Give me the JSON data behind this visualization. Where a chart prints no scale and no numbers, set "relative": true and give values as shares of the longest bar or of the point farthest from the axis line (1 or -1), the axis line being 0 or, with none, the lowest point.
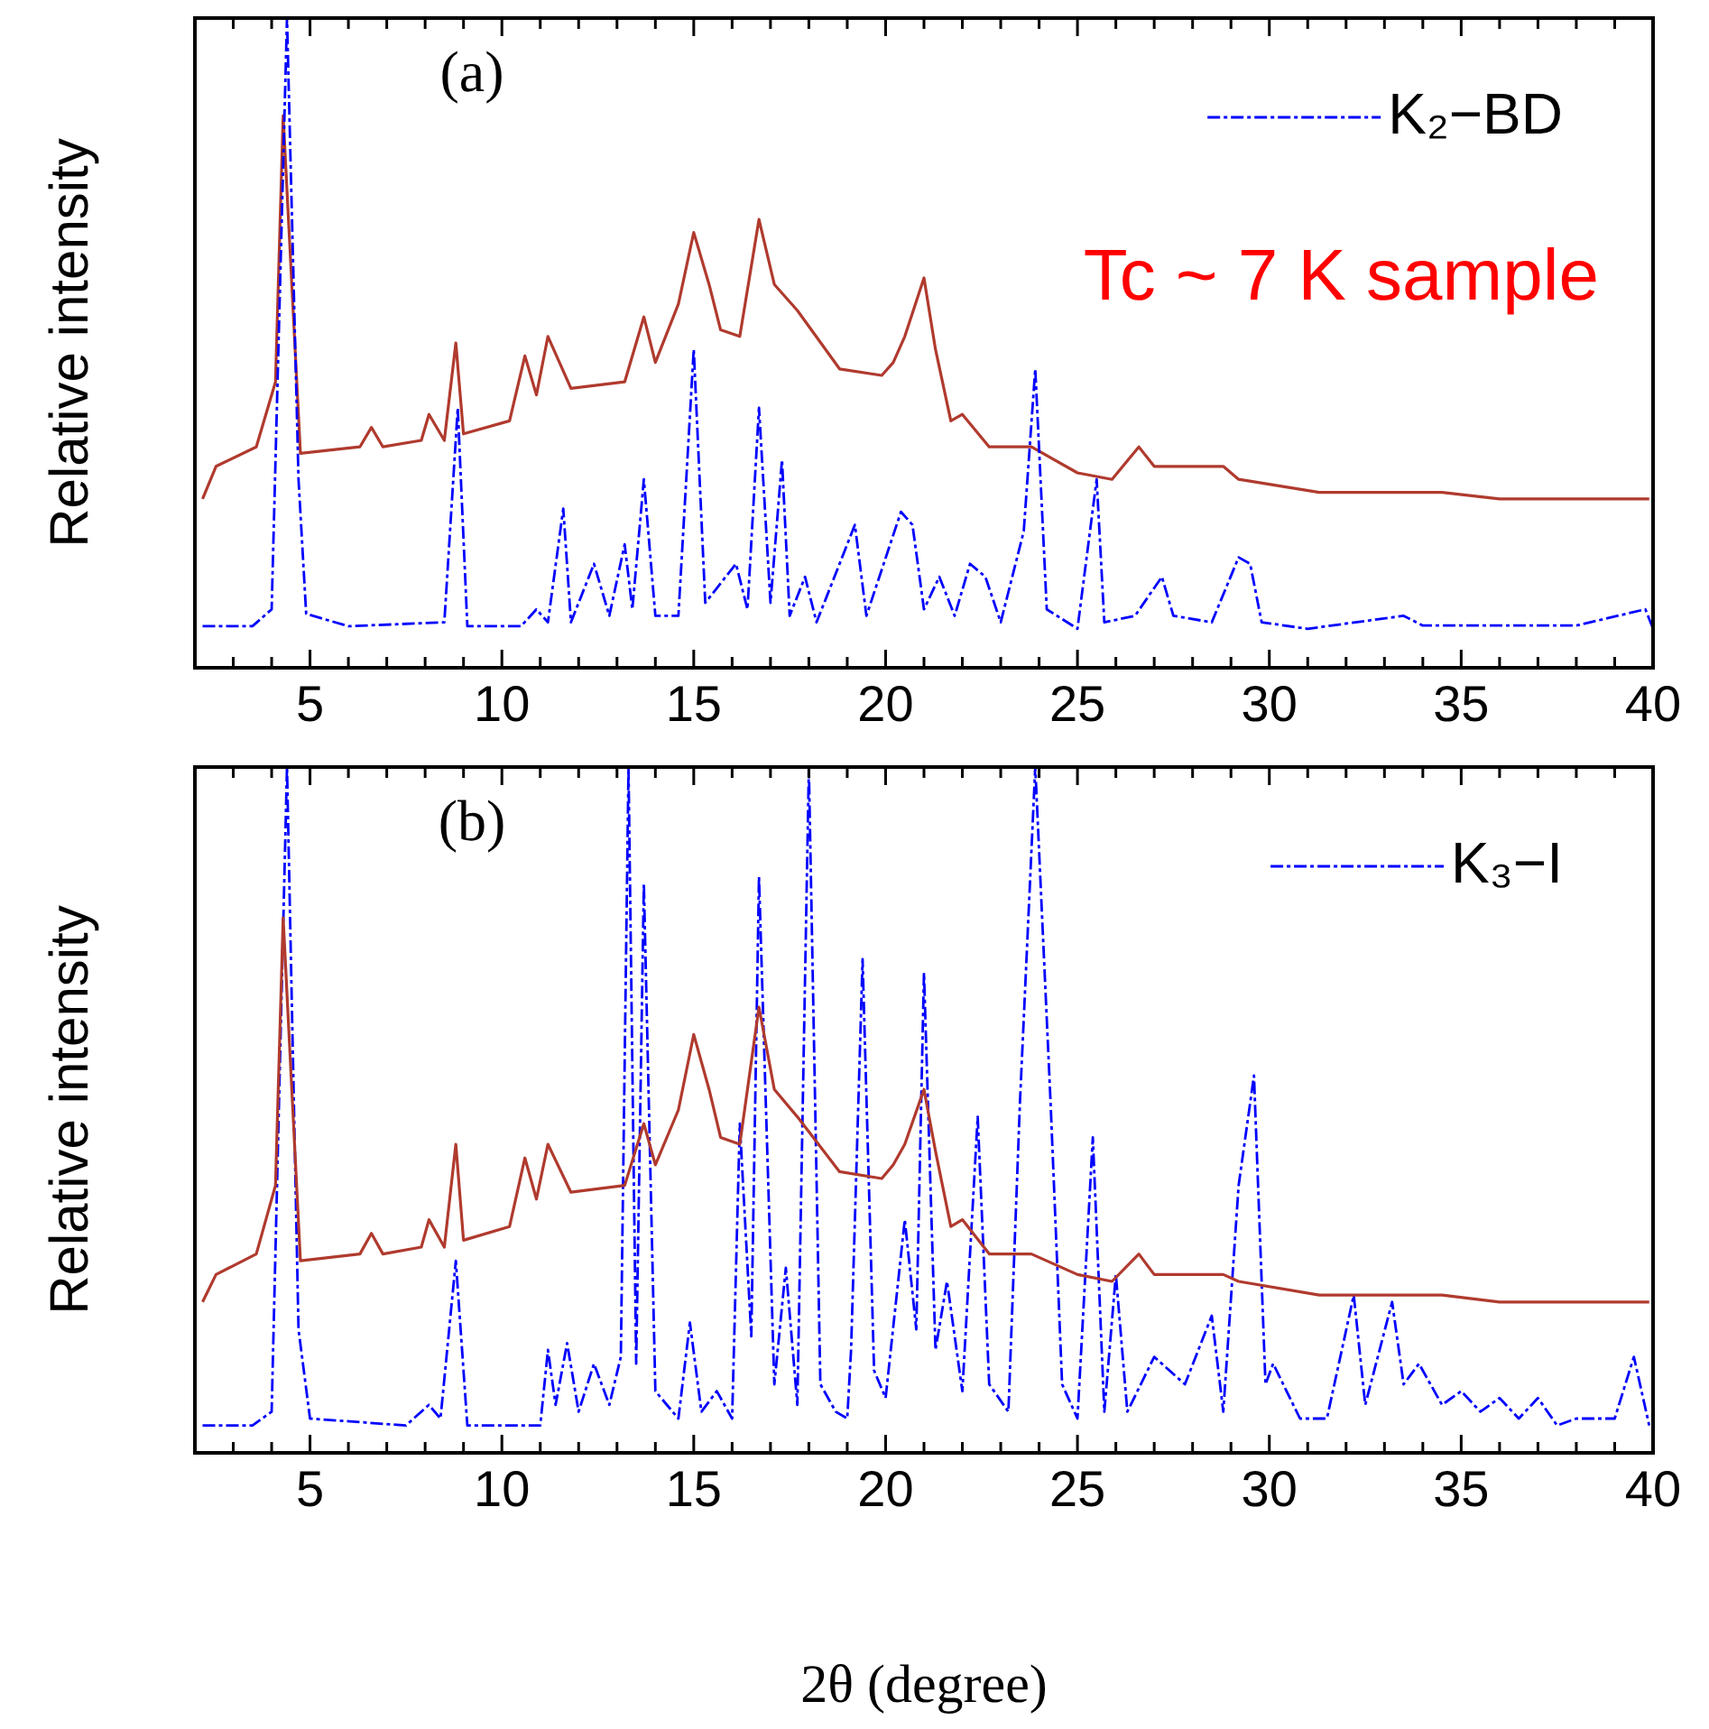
{
  "chart_data": [
    {
      "type": "line",
      "title": "(a)",
      "ylabel": "Relative intensity",
      "relative": true,
      "legend": "top right",
      "annotations": [
        "Tc ~ 7 K sample"
      ],
      "xlim": [
        2,
        40
      ],
      "xticks": [
        {
          "value": 3,
          "label": null
        },
        {
          "value": 4,
          "label": null
        },
        5,
        {
          "value": 6,
          "label": null
        },
        {
          "value": 7,
          "label": null
        },
        {
          "value": 8,
          "label": null
        },
        {
          "value": 9,
          "label": null
        },
        10,
        {
          "value": 11,
          "label": null
        },
        {
          "value": 12,
          "label": null
        },
        {
          "value": 13,
          "label": null
        },
        {
          "value": 14,
          "label": null
        },
        15,
        {
          "value": 16,
          "label": null
        },
        {
          "value": 17,
          "label": null
        },
        {
          "value": 18,
          "label": null
        },
        {
          "value": 19,
          "label": null
        },
        20,
        {
          "value": 21,
          "label": null
        },
        {
          "value": 22,
          "label": null
        },
        {
          "value": 23,
          "label": null
        },
        {
          "value": 24,
          "label": null
        },
        25,
        {
          "value": 26,
          "label": null
        },
        {
          "value": 27,
          "label": null
        },
        {
          "value": 28,
          "label": null
        },
        {
          "value": 29,
          "label": null
        },
        30,
        {
          "value": 31,
          "label": null
        },
        {
          "value": 32,
          "label": null
        },
        {
          "value": 33,
          "label": null
        },
        {
          "value": 34,
          "label": null
        },
        35,
        {
          "value": 36,
          "label": null
        },
        {
          "value": 37,
          "label": null
        },
        {
          "value": 38,
          "label": null
        },
        {
          "value": 39,
          "label": null
        },
        40
      ],
      "series": [
        {
          "color": "#0000ff",
          "line_style": "dashed",
          "name": "K₂−BD",
          "x": [
            2.2,
            3.5,
            4.0,
            4.4,
            4.7,
            4.9,
            6,
            8.5,
            8.85,
            9.1,
            10.5,
            10.9,
            11.2,
            11.6,
            11.8,
            12.4,
            12.8,
            13.2,
            13.4,
            13.7,
            14.0,
            14.6,
            15.0,
            15.3,
            16.1,
            16.4,
            16.7,
            17.0,
            17.3,
            17.5,
            17.9,
            18.2,
            19.2,
            19.5,
            20.4,
            20.7,
            21.0,
            21.4,
            21.8,
            22.2,
            22.6,
            23.0,
            23.6,
            23.9,
            24.2,
            25.0,
            25.5,
            25.7,
            26.5,
            27.2,
            27.5,
            28.5,
            29.2,
            29.5,
            29.8,
            31,
            33.5,
            34,
            36,
            38,
            39.8,
            40
          ],
          "values": [
            0.064,
            0.064,
            0.09,
            1.0,
            0.29,
            0.083,
            0.064,
            0.07,
            0.4,
            0.064,
            0.064,
            0.09,
            0.07,
            0.245,
            0.07,
            0.16,
            0.08,
            0.19,
            0.09,
            0.29,
            0.08,
            0.08,
            0.49,
            0.1,
            0.16,
            0.09,
            0.4,
            0.1,
            0.32,
            0.08,
            0.14,
            0.07,
            0.22,
            0.08,
            0.24,
            0.22,
            0.09,
            0.14,
            0.08,
            0.16,
            0.14,
            0.07,
            0.21,
            0.46,
            0.09,
            0.06,
            0.29,
            0.07,
            0.08,
            0.14,
            0.08,
            0.07,
            0.17,
            0.16,
            0.07,
            0.06,
            0.08,
            0.065,
            0.065,
            0.065,
            0.09,
            0.06
          ]
        },
        {
          "color": "#b03a2e",
          "line_style": "solid",
          "x": [
            2.2,
            2.55,
            3.6,
            4.1,
            4.3,
            4.75,
            6.3,
            6.6,
            6.9,
            7.9,
            8.1,
            8.5,
            8.8,
            9.0,
            10.2,
            10.6,
            10.9,
            11.2,
            11.8,
            13.2,
            13.7,
            14.0,
            14.6,
            15.0,
            15.4,
            15.7,
            16.2,
            16.7,
            17.1,
            17.7,
            18.8,
            19.9,
            20.2,
            20.5,
            21.0,
            21.3,
            21.7,
            22.0,
            22.7,
            23.8,
            25.0,
            25.9,
            26.6,
            27.0,
            28.8,
            29.2,
            31.3,
            34.5,
            36.0,
            39.9
          ],
          "values": [
            0.26,
            0.31,
            0.34,
            0.44,
            0.85,
            0.33,
            0.34,
            0.37,
            0.34,
            0.35,
            0.39,
            0.35,
            0.5,
            0.36,
            0.38,
            0.48,
            0.42,
            0.51,
            0.43,
            0.44,
            0.54,
            0.47,
            0.56,
            0.67,
            0.59,
            0.52,
            0.51,
            0.69,
            0.59,
            0.55,
            0.46,
            0.45,
            0.47,
            0.51,
            0.6,
            0.49,
            0.38,
            0.39,
            0.34,
            0.34,
            0.3,
            0.29,
            0.34,
            0.31,
            0.31,
            0.29,
            0.27,
            0.27,
            0.26,
            0.26
          ]
        }
      ]
    },
    {
      "type": "line",
      "title": "(b)",
      "xlabel": "2θ (degree)",
      "ylabel": "Relative intensity",
      "relative": true,
      "legend": "top right",
      "xlim": [
        2,
        40
      ],
      "xticks": [
        {
          "value": 3,
          "label": null
        },
        {
          "value": 4,
          "label": null
        },
        5,
        {
          "value": 6,
          "label": null
        },
        {
          "value": 7,
          "label": null
        },
        {
          "value": 8,
          "label": null
        },
        {
          "value": 9,
          "label": null
        },
        10,
        {
          "value": 11,
          "label": null
        },
        {
          "value": 12,
          "label": null
        },
        {
          "value": 13,
          "label": null
        },
        {
          "value": 14,
          "label": null
        },
        15,
        {
          "value": 16,
          "label": null
        },
        {
          "value": 17,
          "label": null
        },
        {
          "value": 18,
          "label": null
        },
        {
          "value": 19,
          "label": null
        },
        20,
        {
          "value": 21,
          "label": null
        },
        {
          "value": 22,
          "label": null
        },
        {
          "value": 23,
          "label": null
        },
        {
          "value": 24,
          "label": null
        },
        25,
        {
          "value": 26,
          "label": null
        },
        {
          "value": 27,
          "label": null
        },
        {
          "value": 28,
          "label": null
        },
        {
          "value": 29,
          "label": null
        },
        30,
        {
          "value": 31,
          "label": null
        },
        {
          "value": 32,
          "label": null
        },
        {
          "value": 33,
          "label": null
        },
        {
          "value": 34,
          "label": null
        },
        35,
        {
          "value": 36,
          "label": null
        },
        {
          "value": 37,
          "label": null
        },
        {
          "value": 38,
          "label": null
        },
        {
          "value": 39,
          "label": null
        },
        40
      ],
      "series": [
        {
          "color": "#b03a2e",
          "line_style": "solid",
          "x": [
            2.2,
            2.55,
            3.6,
            4.1,
            4.3,
            4.75,
            6.3,
            6.6,
            6.9,
            7.9,
            8.1,
            8.5,
            8.8,
            9.0,
            10.2,
            10.6,
            10.9,
            11.2,
            11.8,
            13.2,
            13.7,
            14.0,
            14.6,
            15.0,
            15.4,
            15.7,
            16.2,
            16.7,
            17.1,
            17.7,
            18.8,
            19.9,
            20.2,
            20.5,
            21.0,
            21.3,
            21.7,
            22.0,
            22.7,
            23.8,
            25.0,
            25.9,
            26.6,
            27.0,
            28.8,
            29.2,
            31.3,
            34.5,
            36.0,
            39.9
          ],
          "values": [
            0.22,
            0.26,
            0.29,
            0.39,
            0.78,
            0.28,
            0.29,
            0.32,
            0.29,
            0.3,
            0.34,
            0.3,
            0.45,
            0.31,
            0.33,
            0.43,
            0.37,
            0.45,
            0.38,
            0.39,
            0.48,
            0.42,
            0.5,
            0.61,
            0.53,
            0.46,
            0.45,
            0.65,
            0.53,
            0.49,
            0.41,
            0.4,
            0.42,
            0.45,
            0.53,
            0.44,
            0.33,
            0.34,
            0.29,
            0.29,
            0.26,
            0.25,
            0.29,
            0.26,
            0.26,
            0.25,
            0.23,
            0.23,
            0.22,
            0.22
          ]
        },
        {
          "color": "#0000ff",
          "line_style": "dashed",
          "name": "K₃−I",
          "x": [
            2.2,
            3.5,
            4.0,
            4.4,
            4.7,
            5.0,
            7.5,
            8.1,
            8.4,
            8.8,
            9.1,
            11.0,
            11.2,
            11.4,
            11.7,
            12.0,
            12.4,
            12.8,
            13.1,
            13.3,
            13.5,
            13.7,
            14.0,
            14.6,
            14.9,
            15.2,
            15.6,
            16.0,
            16.2,
            16.5,
            16.7,
            17.1,
            17.4,
            17.7,
            18.0,
            18.3,
            18.7,
            19.0,
            19.1,
            19.4,
            19.7,
            20.0,
            20.5,
            20.8,
            21.0,
            21.3,
            21.6,
            22.0,
            22.4,
            22.7,
            23.2,
            23.5,
            23.9,
            24.3,
            24.6,
            25.0,
            25.4,
            25.7,
            26.0,
            26.3,
            27.0,
            27.8,
            28.5,
            28.8,
            29.2,
            29.6,
            29.9,
            30.1,
            30.8,
            31.5,
            32.2,
            32.5,
            33.2,
            33.5,
            33.9,
            34.5,
            35.0,
            35.5,
            36.0,
            36.5,
            37.0,
            37.5,
            38.0,
            39.0,
            39.5,
            39.9
          ],
          "values": [
            0.04,
            0.04,
            0.06,
            1.0,
            0.18,
            0.05,
            0.04,
            0.07,
            0.05,
            0.28,
            0.04,
            0.04,
            0.15,
            0.07,
            0.16,
            0.06,
            0.13,
            0.07,
            0.14,
            1.0,
            0.13,
            0.83,
            0.09,
            0.05,
            0.19,
            0.06,
            0.09,
            0.05,
            0.48,
            0.17,
            0.84,
            0.1,
            0.27,
            0.07,
            1.0,
            0.1,
            0.06,
            0.05,
            0.15,
            0.72,
            0.12,
            0.08,
            0.34,
            0.18,
            0.7,
            0.15,
            0.25,
            0.09,
            0.49,
            0.1,
            0.06,
            0.51,
            1.0,
            0.51,
            0.1,
            0.05,
            0.46,
            0.06,
            0.26,
            0.06,
            0.14,
            0.1,
            0.2,
            0.06,
            0.39,
            0.55,
            0.1,
            0.13,
            0.05,
            0.05,
            0.23,
            0.07,
            0.22,
            0.1,
            0.13,
            0.07,
            0.09,
            0.06,
            0.08,
            0.05,
            0.08,
            0.04,
            0.05,
            0.05,
            0.14,
            0.04
          ]
        }
      ]
    }
  ]
}
